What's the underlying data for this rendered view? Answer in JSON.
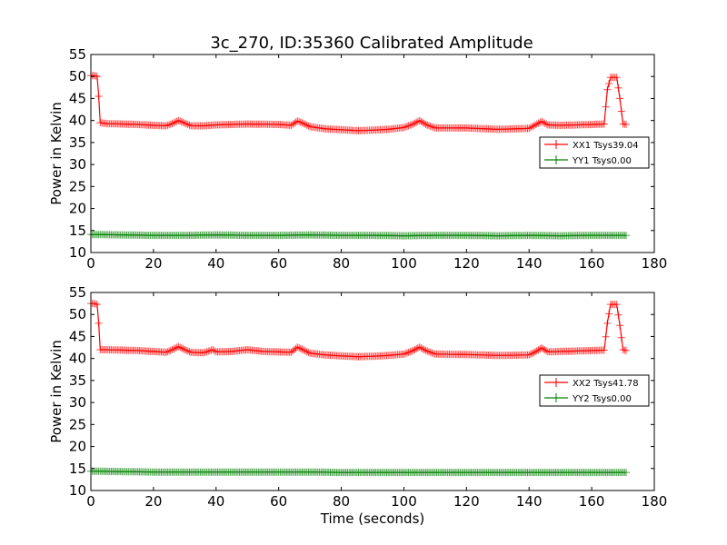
{
  "chart_data": [
    {
      "type": "line",
      "title": "3c_270, ID:35360 Calibrated Amplitude",
      "xlabel": "",
      "ylabel": "Power in Kelvin",
      "xlim": [
        0,
        180
      ],
      "ylim": [
        10,
        55
      ],
      "xticks": [
        "0",
        "20",
        "40",
        "60",
        "80",
        "100",
        "120",
        "140",
        "160",
        "180"
      ],
      "yticks": [
        "10",
        "15",
        "20",
        "25",
        "30",
        "35",
        "40",
        "45",
        "50",
        "55"
      ],
      "legend_position": "right",
      "grid": false,
      "series": [
        {
          "name": "XX1 Tsys39.04",
          "color": "#ff0000",
          "x": [
            0,
            1,
            2,
            2.5,
            3,
            5,
            10,
            15,
            20,
            24,
            26,
            28,
            30,
            32,
            36,
            40,
            50,
            60,
            64,
            66,
            68,
            70,
            75,
            80,
            85,
            90,
            95,
            100,
            103,
            105,
            107,
            110,
            120,
            130,
            140,
            142,
            144,
            146,
            150,
            160,
            164,
            165,
            166,
            167,
            168,
            169,
            170,
            171
          ],
          "y": [
            50.2,
            50.2,
            50.0,
            45.5,
            39.5,
            39.3,
            39.2,
            39.1,
            38.9,
            38.8,
            39.3,
            40.0,
            39.4,
            38.8,
            38.8,
            39.0,
            39.2,
            39.1,
            38.9,
            39.9,
            39.3,
            38.6,
            38.1,
            37.9,
            37.7,
            37.8,
            38.0,
            38.4,
            39.2,
            40.0,
            39.1,
            38.3,
            38.3,
            38.0,
            38.2,
            39.0,
            39.8,
            39.0,
            38.9,
            39.1,
            39.2,
            47.0,
            49.8,
            49.8,
            49.8,
            45.0,
            39.2,
            39.1
          ]
        },
        {
          "name": "YY1 Tsys0.00",
          "color": "#008000",
          "x": [
            0,
            10,
            20,
            30,
            40,
            50,
            60,
            70,
            80,
            90,
            100,
            110,
            120,
            130,
            140,
            150,
            160,
            171
          ],
          "y": [
            14.1,
            14.0,
            13.9,
            13.9,
            14.0,
            13.9,
            13.9,
            14.0,
            13.9,
            13.9,
            13.8,
            13.9,
            13.9,
            13.8,
            13.9,
            13.8,
            13.9,
            13.9
          ]
        }
      ]
    },
    {
      "type": "line",
      "title": "",
      "xlabel": "Time (seconds)",
      "ylabel": "Power in Kelvin",
      "xlim": [
        0,
        180
      ],
      "ylim": [
        10,
        55
      ],
      "xticks": [
        "0",
        "20",
        "40",
        "60",
        "80",
        "100",
        "120",
        "140",
        "160",
        "180"
      ],
      "yticks": [
        "10",
        "15",
        "20",
        "25",
        "30",
        "35",
        "40",
        "45",
        "50",
        "55"
      ],
      "legend_position": "right",
      "grid": false,
      "series": [
        {
          "name": "XX2 Tsys41.78",
          "color": "#ff0000",
          "x": [
            0,
            1,
            2,
            2.5,
            3,
            5,
            10,
            15,
            20,
            24,
            26,
            28,
            30,
            32,
            36,
            39,
            40,
            45,
            50,
            55,
            60,
            64,
            66,
            68,
            70,
            75,
            80,
            85,
            90,
            95,
            100,
            103,
            105,
            107,
            110,
            120,
            130,
            140,
            142,
            144,
            146,
            150,
            160,
            164,
            165,
            166,
            167,
            168,
            169,
            170,
            171
          ],
          "y": [
            52.5,
            52.5,
            52.3,
            48.0,
            42.0,
            42.0,
            41.9,
            41.8,
            41.6,
            41.4,
            42.0,
            42.7,
            42.0,
            41.4,
            41.3,
            42.0,
            41.5,
            41.6,
            42.0,
            41.6,
            41.5,
            41.4,
            42.6,
            41.9,
            41.2,
            40.8,
            40.6,
            40.4,
            40.5,
            40.7,
            41.0,
            41.8,
            42.6,
            41.8,
            41.0,
            40.9,
            40.7,
            40.8,
            41.5,
            42.4,
            41.5,
            41.6,
            41.8,
            41.9,
            48.0,
            52.3,
            52.3,
            52.3,
            47.5,
            42.0,
            41.8
          ]
        },
        {
          "name": "YY2 Tsys0.00",
          "color": "#008000",
          "x": [
            0,
            10,
            20,
            30,
            40,
            50,
            60,
            70,
            80,
            90,
            100,
            110,
            120,
            130,
            140,
            150,
            160,
            171
          ],
          "y": [
            14.4,
            14.3,
            14.2,
            14.2,
            14.2,
            14.2,
            14.2,
            14.2,
            14.1,
            14.1,
            14.1,
            14.1,
            14.1,
            14.1,
            14.1,
            14.1,
            14.1,
            14.1
          ]
        }
      ]
    }
  ]
}
